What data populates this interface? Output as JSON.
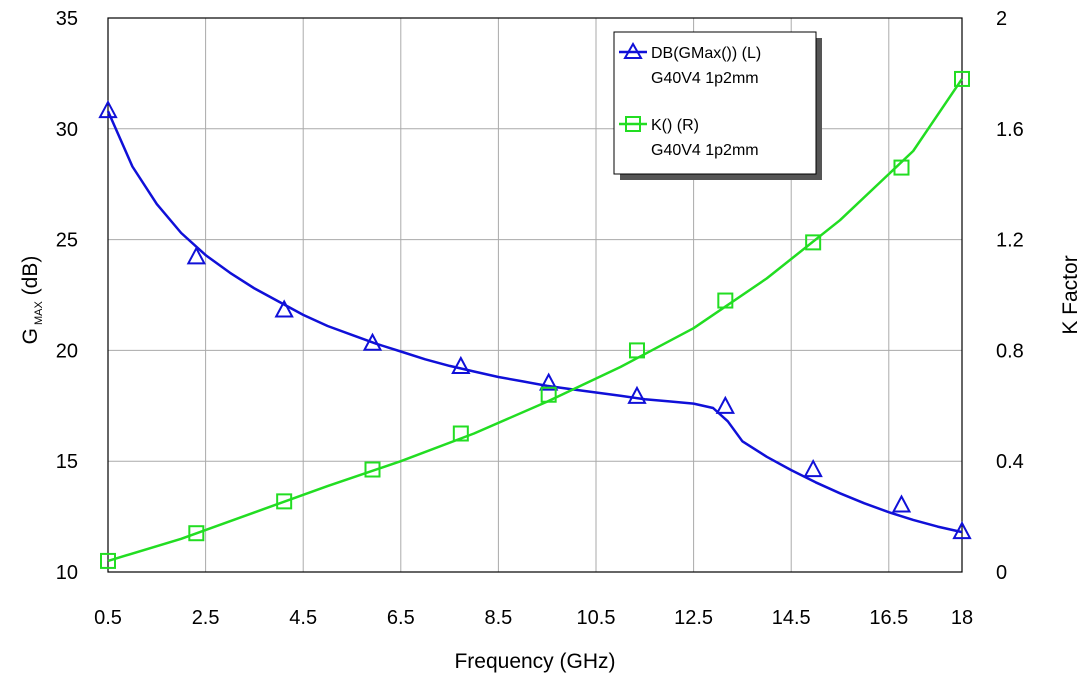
{
  "chart_data": {
    "type": "line",
    "xlabel": "Frequency (GHz)",
    "ylabel_left": {
      "main": "G",
      "sub": "MAX",
      "rest": " (dB)"
    },
    "ylabel_right": "K Factor",
    "xlim": [
      0.5,
      18
    ],
    "ylim_left": [
      10,
      35
    ],
    "ylim_right": [
      0,
      2
    ],
    "x_ticks": [
      0.5,
      2.5,
      4.5,
      6.5,
      8.5,
      10.5,
      12.5,
      14.5,
      16.5,
      18
    ],
    "x_tick_labels": [
      "0.5",
      "2.5",
      "4.5",
      "6.5",
      "8.5",
      "10.5",
      "12.5",
      "14.5",
      "16.5",
      "18"
    ],
    "y_left_ticks": [
      10,
      15,
      20,
      25,
      30,
      35
    ],
    "y_left_tick_labels": [
      "10",
      "15",
      "20",
      "25",
      "30",
      "35"
    ],
    "y_right_ticks": [
      0,
      0.4,
      0.8,
      1.2,
      1.6,
      2
    ],
    "y_right_tick_labels": [
      "0",
      "0.4",
      "0.8",
      "1.2",
      "1.6",
      "2"
    ],
    "grid": true,
    "legend_position": "top-right",
    "series": [
      {
        "name": "DB(GMax()) (L)",
        "subname": "G40V4 1p2mm",
        "axis": "left",
        "color": "#1010d8",
        "marker": "triangle",
        "x": [
          0.5,
          1.0,
          1.5,
          2.0,
          2.5,
          3.0,
          3.5,
          4.0,
          4.5,
          5.0,
          5.5,
          6.0,
          6.5,
          7.0,
          7.5,
          8.0,
          8.5,
          9.0,
          9.5,
          10.0,
          10.5,
          11.0,
          11.5,
          12.0,
          12.5,
          12.9,
          13.2,
          13.5,
          14.0,
          14.5,
          15.0,
          15.5,
          16.0,
          16.5,
          17.0,
          17.5,
          18.0
        ],
        "values": [
          30.8,
          28.3,
          26.6,
          25.3,
          24.3,
          23.5,
          22.8,
          22.2,
          21.6,
          21.1,
          20.7,
          20.3,
          19.95,
          19.6,
          19.3,
          19.05,
          18.8,
          18.6,
          18.4,
          18.25,
          18.1,
          17.95,
          17.8,
          17.7,
          17.6,
          17.4,
          16.8,
          15.9,
          15.2,
          14.6,
          14.05,
          13.55,
          13.1,
          12.7,
          12.35,
          12.05,
          11.8
        ],
        "markers_x": [
          0.5,
          2.31,
          4.11,
          5.92,
          7.73,
          9.53,
          11.34,
          13.15,
          14.95,
          16.76,
          18.0
        ],
        "markers_y": [
          30.8,
          24.2,
          21.8,
          20.3,
          19.25,
          18.5,
          17.9,
          17.45,
          14.6,
          13.0,
          11.8
        ]
      },
      {
        "name": "K() (R)",
        "subname": "G40V4 1p2mm",
        "axis": "right",
        "color": "#22dd22",
        "marker": "square",
        "x": [
          0.5,
          2.0,
          3.5,
          5.0,
          6.5,
          8.0,
          9.5,
          11.0,
          12.5,
          14.0,
          15.5,
          17.0,
          18.0
        ],
        "values": [
          0.04,
          0.12,
          0.215,
          0.31,
          0.4,
          0.5,
          0.615,
          0.74,
          0.88,
          1.06,
          1.27,
          1.52,
          1.78
        ],
        "markers_x": [
          0.5,
          2.31,
          4.11,
          5.92,
          7.73,
          9.53,
          11.34,
          13.15,
          14.95,
          16.76,
          18.0
        ],
        "markers_y": [
          0.04,
          0.14,
          0.255,
          0.37,
          0.5,
          0.64,
          0.8,
          0.98,
          1.19,
          1.46,
          1.78
        ]
      }
    ]
  }
}
